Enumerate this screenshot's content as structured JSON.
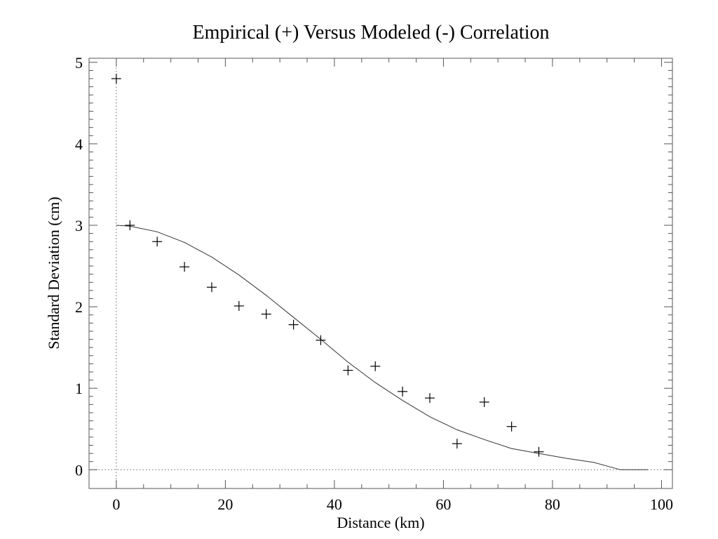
{
  "chart_data": {
    "type": "scatter",
    "title": "Empirical (+) Versus Modeled (-) Correlation",
    "xlabel": "Distance (km)",
    "ylabel": "Standard Deviation (cm)",
    "xlim": [
      -5,
      102
    ],
    "ylim": [
      -0.23,
      5.05
    ],
    "xticks": [
      0,
      20,
      40,
      60,
      80,
      100
    ],
    "xtick_labels": [
      "0",
      "20",
      "40",
      "60",
      "80",
      "100"
    ],
    "yticks": [
      0,
      1,
      2,
      3,
      4,
      5
    ],
    "ytick_labels": [
      "0",
      "1",
      "2",
      "3",
      "4",
      "5"
    ],
    "grid": false,
    "reference_lines": [
      {
        "orientation": "vertical",
        "x": 0,
        "style": "dotted"
      },
      {
        "orientation": "horizontal",
        "y": 0,
        "style": "dotted"
      }
    ],
    "series": [
      {
        "marker": "plus",
        "x": [
          0,
          2.5,
          7.5,
          12.5,
          17.5,
          22.5,
          27.5,
          32.5,
          37.5,
          42.5,
          47.5,
          52.5,
          57.5,
          62.5,
          67.5,
          72.5,
          77.5
        ],
        "y": [
          4.8,
          3.0,
          2.8,
          2.49,
          2.24,
          2.01,
          1.91,
          1.78,
          1.59,
          1.22,
          1.27,
          0.96,
          0.88,
          0.32,
          0.83,
          0.53,
          0.22
        ]
      },
      {
        "line": "solid",
        "x": [
          0,
          2.5,
          7.5,
          12.5,
          17.5,
          22.5,
          27.5,
          32.5,
          37.5,
          42.5,
          47.5,
          52.5,
          57.5,
          62.5,
          67.5,
          72.5,
          77.5,
          82.5,
          87.5,
          92.5,
          97.5
        ],
        "y": [
          3.0,
          2.99,
          2.92,
          2.79,
          2.61,
          2.39,
          2.14,
          1.87,
          1.6,
          1.32,
          1.07,
          0.85,
          0.65,
          0.49,
          0.37,
          0.26,
          0.2,
          0.14,
          0.09,
          0.0,
          0.0
        ]
      }
    ]
  }
}
